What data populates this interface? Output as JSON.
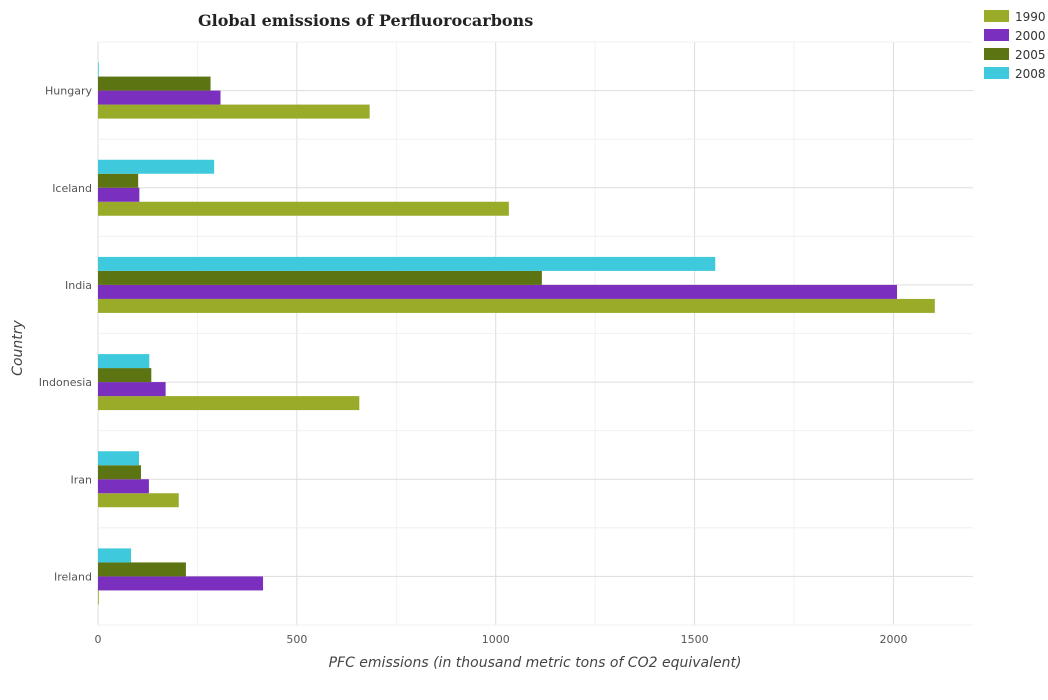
{
  "chart_data": {
    "type": "bar",
    "orientation": "horizontal",
    "title": "Global emissions of Perfluorocarbons",
    "xlabel": "PFC emissions (in thousand metric tons of CO2 equivalent)",
    "ylabel": "Country",
    "categories": [
      "Hungary",
      "Iceland",
      "India",
      "Indonesia",
      "Iran",
      "Ireland"
    ],
    "series": [
      {
        "name": "1990",
        "color": "#9aab2a",
        "values": [
          683,
          1033,
          2104,
          657,
          203,
          1
        ]
      },
      {
        "name": "2000",
        "color": "#7b2fbe",
        "values": [
          308,
          104,
          2009,
          170,
          128,
          415
        ]
      },
      {
        "name": "2005",
        "color": "#5c7412",
        "values": [
          283,
          101,
          1116,
          134,
          108,
          221
        ]
      },
      {
        "name": "2008",
        "color": "#3fc9dc",
        "values": [
          2,
          292,
          1552,
          129,
          103,
          83
        ]
      }
    ],
    "xlim": [
      0,
      2200
    ],
    "xticks": [
      0,
      500,
      1000,
      1500,
      2000
    ],
    "grid": true,
    "legend_position": "top-right"
  }
}
